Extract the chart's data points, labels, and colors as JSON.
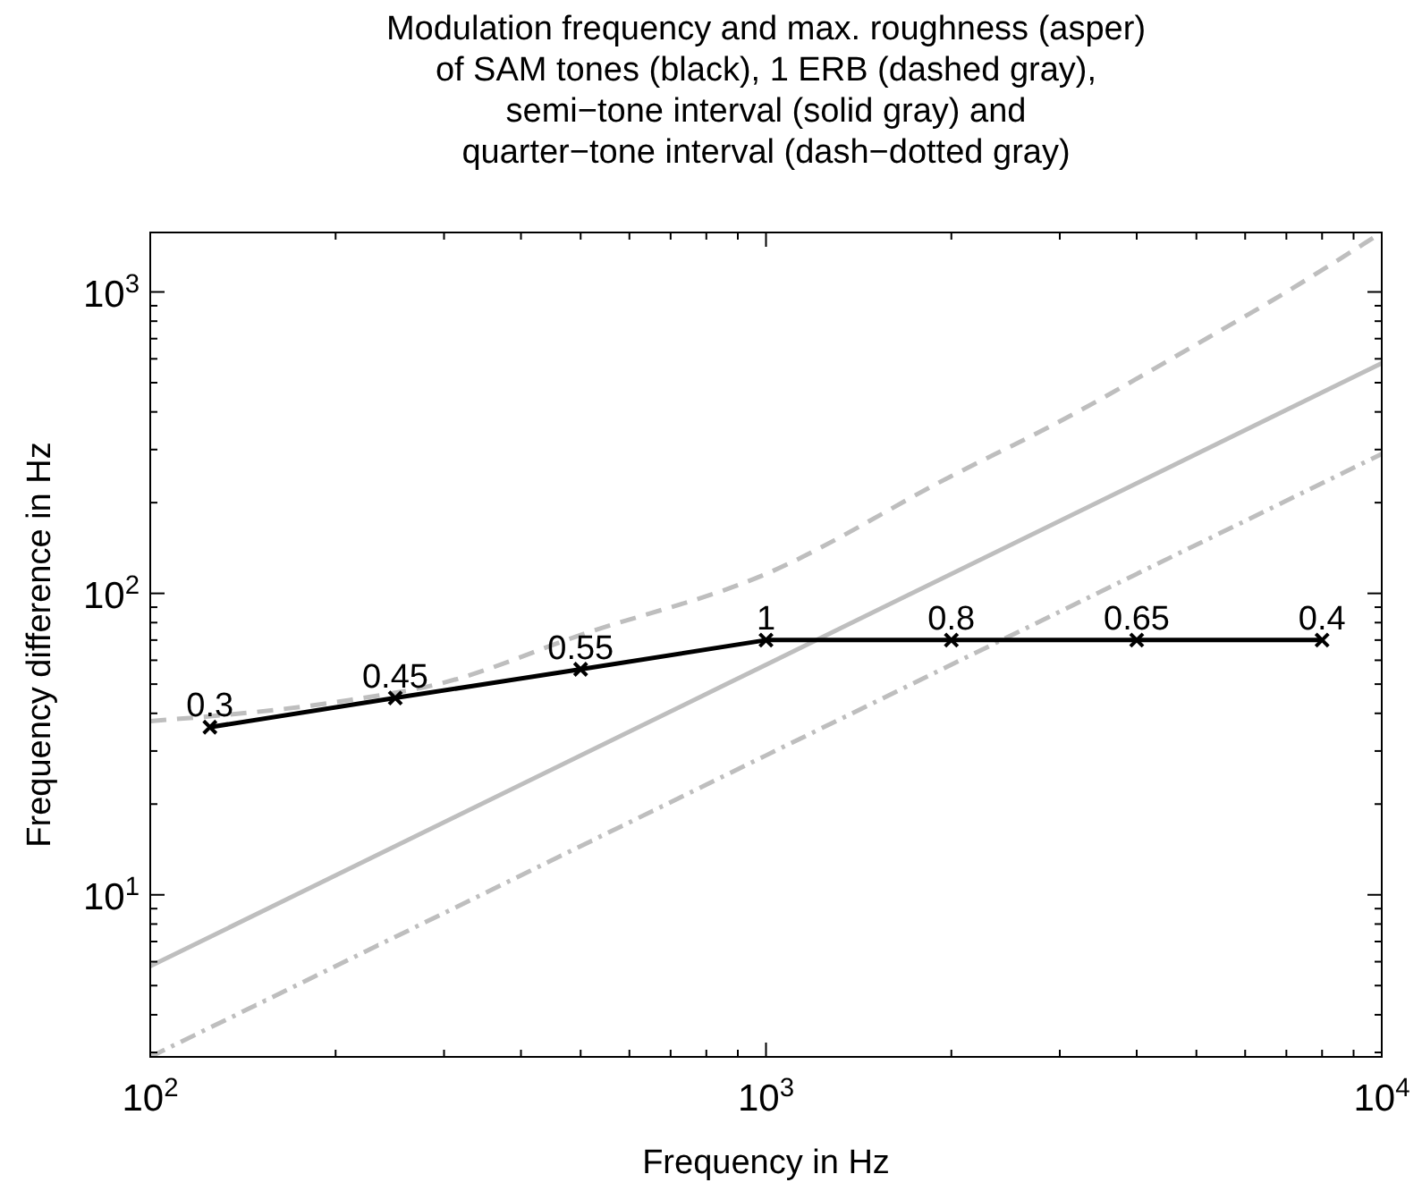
{
  "chart_data": {
    "type": "line",
    "title": "Modulation frequency and max. roughness (asper)\nof SAM tones (black), 1 ERB (dashed gray),\nsemi−tone interval (solid gray) and\nquarter−tone interval (dash−dotted gray)",
    "xlabel": "Frequency in Hz",
    "ylabel": "Frequency difference in Hz",
    "log": "xy",
    "grid": false,
    "xlim": [
      100,
      10000
    ],
    "ylim": [
      2.9,
      1575
    ],
    "xticks": [
      {
        "value": 100,
        "label": "10$^{2}$"
      },
      {
        "value": 200,
        "label": null
      },
      {
        "value": 300,
        "label": null
      },
      {
        "value": 400,
        "label": null
      },
      {
        "value": 500,
        "label": null
      },
      {
        "value": 600,
        "label": null
      },
      {
        "value": 700,
        "label": null
      },
      {
        "value": 800,
        "label": null
      },
      {
        "value": 900,
        "label": null
      },
      {
        "value": 1000,
        "label": "10$^{3}$"
      },
      {
        "value": 2000,
        "label": null
      },
      {
        "value": 3000,
        "label": null
      },
      {
        "value": 4000,
        "label": null
      },
      {
        "value": 5000,
        "label": null
      },
      {
        "value": 6000,
        "label": null
      },
      {
        "value": 7000,
        "label": null
      },
      {
        "value": 8000,
        "label": null
      },
      {
        "value": 9000,
        "label": null
      },
      {
        "value": 10000,
        "label": "10$^{4}$"
      }
    ],
    "yticks": [
      {
        "value": 3,
        "label": null
      },
      {
        "value": 4,
        "label": null
      },
      {
        "value": 5,
        "label": null
      },
      {
        "value": 6,
        "label": null
      },
      {
        "value": 7,
        "label": null
      },
      {
        "value": 8,
        "label": null
      },
      {
        "value": 9,
        "label": null
      },
      {
        "value": 10,
        "label": "10$^{1}$"
      },
      {
        "value": 20,
        "label": null
      },
      {
        "value": 30,
        "label": null
      },
      {
        "value": 40,
        "label": null
      },
      {
        "value": 50,
        "label": null
      },
      {
        "value": 60,
        "label": null
      },
      {
        "value": 70,
        "label": null
      },
      {
        "value": 80,
        "label": null
      },
      {
        "value": 90,
        "label": null
      },
      {
        "value": 100,
        "label": "10$^{2}$"
      },
      {
        "value": 200,
        "label": null
      },
      {
        "value": 300,
        "label": null
      },
      {
        "value": 400,
        "label": null
      },
      {
        "value": 500,
        "label": null
      },
      {
        "value": 600,
        "label": null
      },
      {
        "value": 700,
        "label": null
      },
      {
        "value": 800,
        "label": null
      },
      {
        "value": 900,
        "label": null
      },
      {
        "value": 1000,
        "label": "10$^{3}$"
      }
    ],
    "series": [
      {
        "color": "#bebebe",
        "line_style": "dashed",
        "marker": "none",
        "x": [
          100,
          200,
          300,
          500,
          1000,
          2000,
          3000,
          5000,
          7000,
          10000
        ],
        "values": [
          37.7,
          43.6,
          50.6,
          72.8,
          116,
          245,
          372,
          670,
          1000,
          1575
        ]
      },
      {
        "color": "#bebebe",
        "line_style": "solid",
        "marker": "none",
        "x": [
          100,
          1000,
          10000
        ],
        "values": [
          5.8,
          58,
          580
        ]
      },
      {
        "color": "#bebebe",
        "line_style": "dashdot",
        "marker": "none",
        "x": [
          100,
          1000,
          10000
        ],
        "values": [
          2.9,
          29,
          290
        ]
      },
      {
        "color": "#000000",
        "line_style": "solid",
        "marker": "cross",
        "x": [
          125,
          250,
          500,
          1000,
          2000,
          4000,
          8000
        ],
        "values": [
          36,
          45,
          56,
          70,
          70,
          70,
          70
        ]
      }
    ],
    "annotations": [
      {
        "text": "0.3",
        "x": 125,
        "y": 36
      },
      {
        "text": "0.45",
        "x": 250,
        "y": 45
      },
      {
        "text": "0.55",
        "x": 500,
        "y": 56
      },
      {
        "text": "1",
        "x": 1000,
        "y": 70
      },
      {
        "text": "0.8",
        "x": 2000,
        "y": 70
      },
      {
        "text": "0.65",
        "x": 4000,
        "y": 70
      },
      {
        "text": "0.4",
        "x": 8000,
        "y": 70
      }
    ]
  }
}
